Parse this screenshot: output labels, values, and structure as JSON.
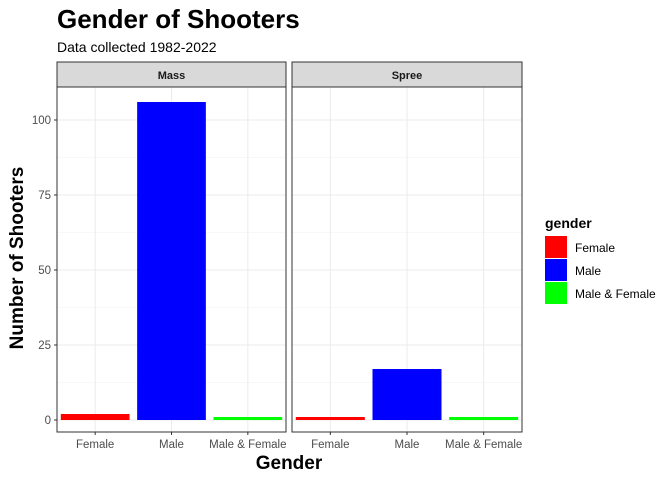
{
  "chart_data": {
    "type": "bar",
    "title": "Gender of Shooters",
    "subtitle": "Data collected 1982-2022",
    "xlabel": "Gender",
    "ylabel": "Number of Shooters",
    "categories": [
      "Female",
      "Male",
      "Male & Female"
    ],
    "facets": [
      {
        "name": "Mass",
        "values": [
          2,
          106,
          1
        ]
      },
      {
        "name": "Spree",
        "values": [
          1,
          17,
          1
        ]
      }
    ],
    "ylim": [
      -4,
      111
    ],
    "yticks": [
      0,
      25,
      50,
      75,
      100
    ],
    "grid": true,
    "legend": {
      "title": "gender",
      "position": "right",
      "entries": [
        {
          "label": "Female",
          "color": "#ff0000"
        },
        {
          "label": "Male",
          "color": "#0000ff"
        },
        {
          "label": "Male & Female",
          "color": "#00ff00"
        }
      ]
    },
    "colors": {
      "Female": "#ff0000",
      "Male": "#0000ff",
      "Male & Female": "#00ff00"
    }
  }
}
